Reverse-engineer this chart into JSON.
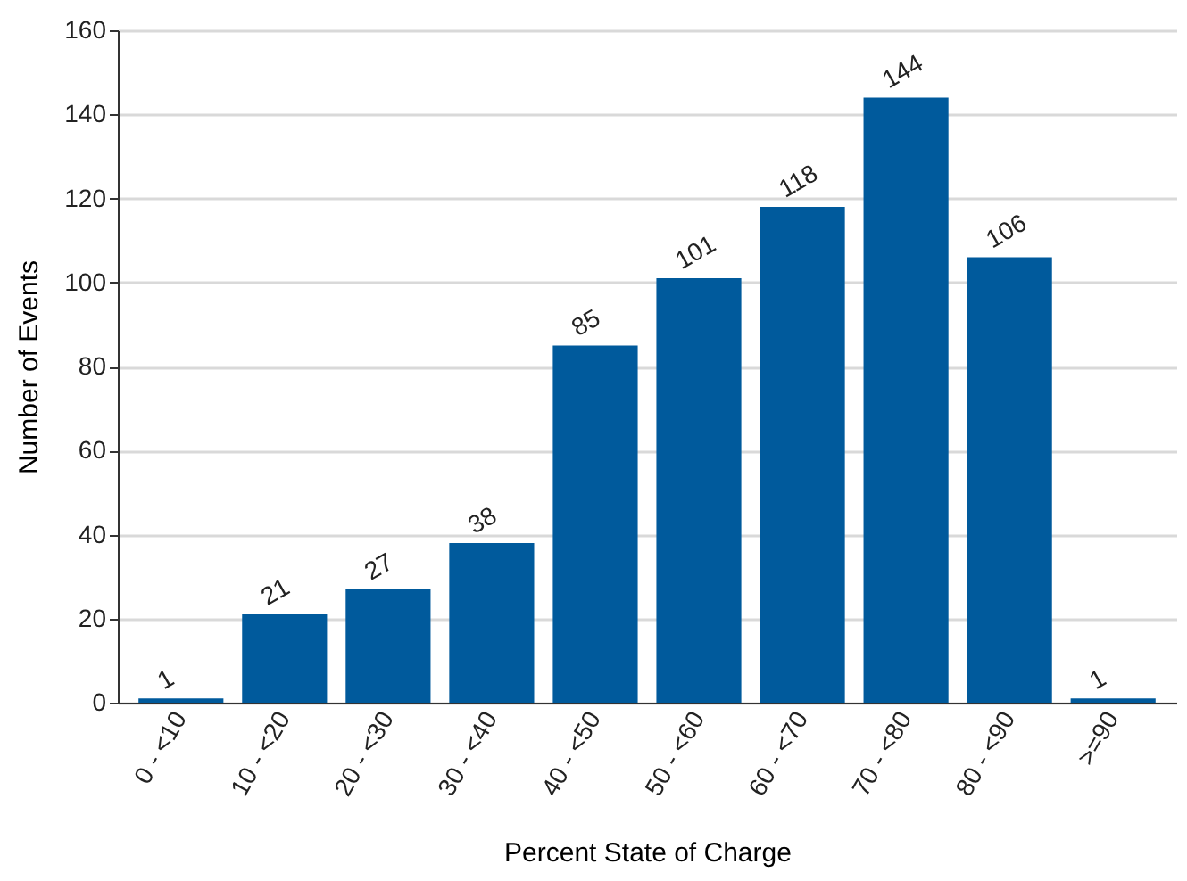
{
  "chart_data": {
    "type": "bar",
    "xlabel": "Percent State of Charge",
    "ylabel": "Number of Events",
    "categories": [
      "0 - <10",
      "10 - <20",
      "20 - <30",
      "30 - <40",
      "40 - <50",
      "50 - <60",
      "60 - <70",
      "70 - <80",
      "80 - <90",
      ">=90"
    ],
    "values": [
      1,
      21,
      27,
      38,
      85,
      101,
      118,
      144,
      106,
      1
    ],
    "color": "#005a9c",
    "ylim": [
      0,
      160
    ],
    "yticks": [
      0,
      20,
      40,
      60,
      80,
      100,
      120,
      140,
      160
    ],
    "grid": "y",
    "data_labels": true
  }
}
